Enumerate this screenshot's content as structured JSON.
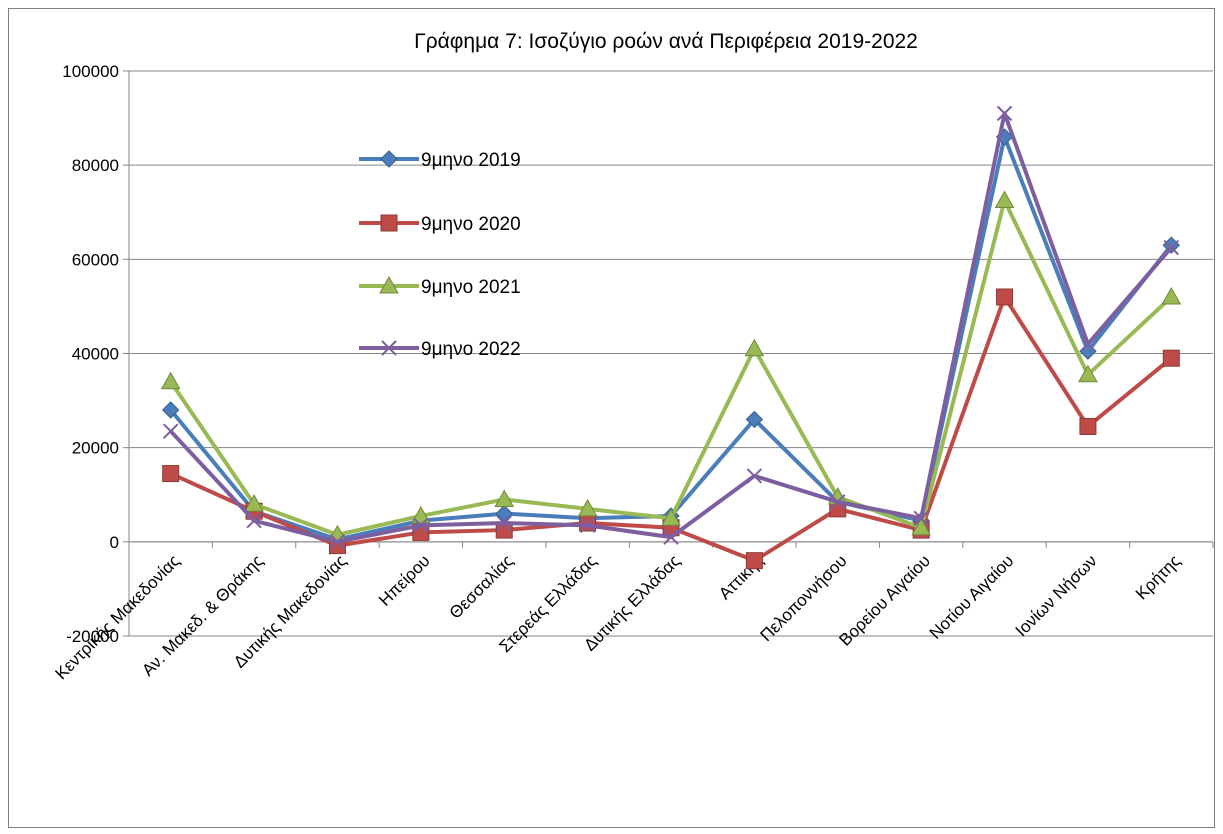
{
  "chart_data": {
    "type": "line",
    "title": "Γράφημα 7: Ισοζύγιο ροών ανά Περιφέρεια 2019-2022",
    "xlabel": "",
    "ylabel": "",
    "ylim": [
      -20000,
      100000
    ],
    "yticks": [
      -20000,
      0,
      20000,
      40000,
      60000,
      80000,
      100000
    ],
    "grid": "horizontal",
    "legend_position": "inside-left-top",
    "categories": [
      "Κεντρικής Μακεδονίας",
      "Αν. Μακεδ. & Θράκης",
      "Δυτικής Μακεδονίας",
      "Ηπείρου",
      "Θεσσαλίας",
      "Στερεάς Ελλάδας",
      "Δυτικής Ελλάδας",
      "Αττικής",
      "Πελοποννήσου",
      "Βορείου Αιγαίου",
      "Νοτίου Αιγαίου",
      "Ιονίων Νήσων",
      "Κρήτης"
    ],
    "series": [
      {
        "name": "9μηνο 2019",
        "color": "#4a7ebb",
        "marker": "diamond",
        "values": [
          28000,
          6500,
          500,
          4500,
          6000,
          5000,
          5500,
          26000,
          8500,
          4500,
          86000,
          40500,
          63000
        ]
      },
      {
        "name": "9μηνο 2020",
        "color": "#be4b48",
        "marker": "square",
        "values": [
          14500,
          6500,
          -800,
          2000,
          2500,
          4000,
          3000,
          -4000,
          7000,
          2500,
          52000,
          24500,
          39000
        ]
      },
      {
        "name": "9μηνο 2021",
        "color": "#98b954",
        "marker": "triangle",
        "values": [
          34000,
          8000,
          1500,
          5500,
          9000,
          7000,
          5000,
          41000,
          9500,
          3000,
          72500,
          35500,
          52000
        ]
      },
      {
        "name": "9μηνο 2022",
        "color": "#7d5fa0",
        "marker": "x",
        "values": [
          23500,
          4500,
          0,
          3500,
          4000,
          3500,
          1000,
          14000,
          8500,
          5000,
          91000,
          42000,
          62500
        ]
      }
    ]
  }
}
